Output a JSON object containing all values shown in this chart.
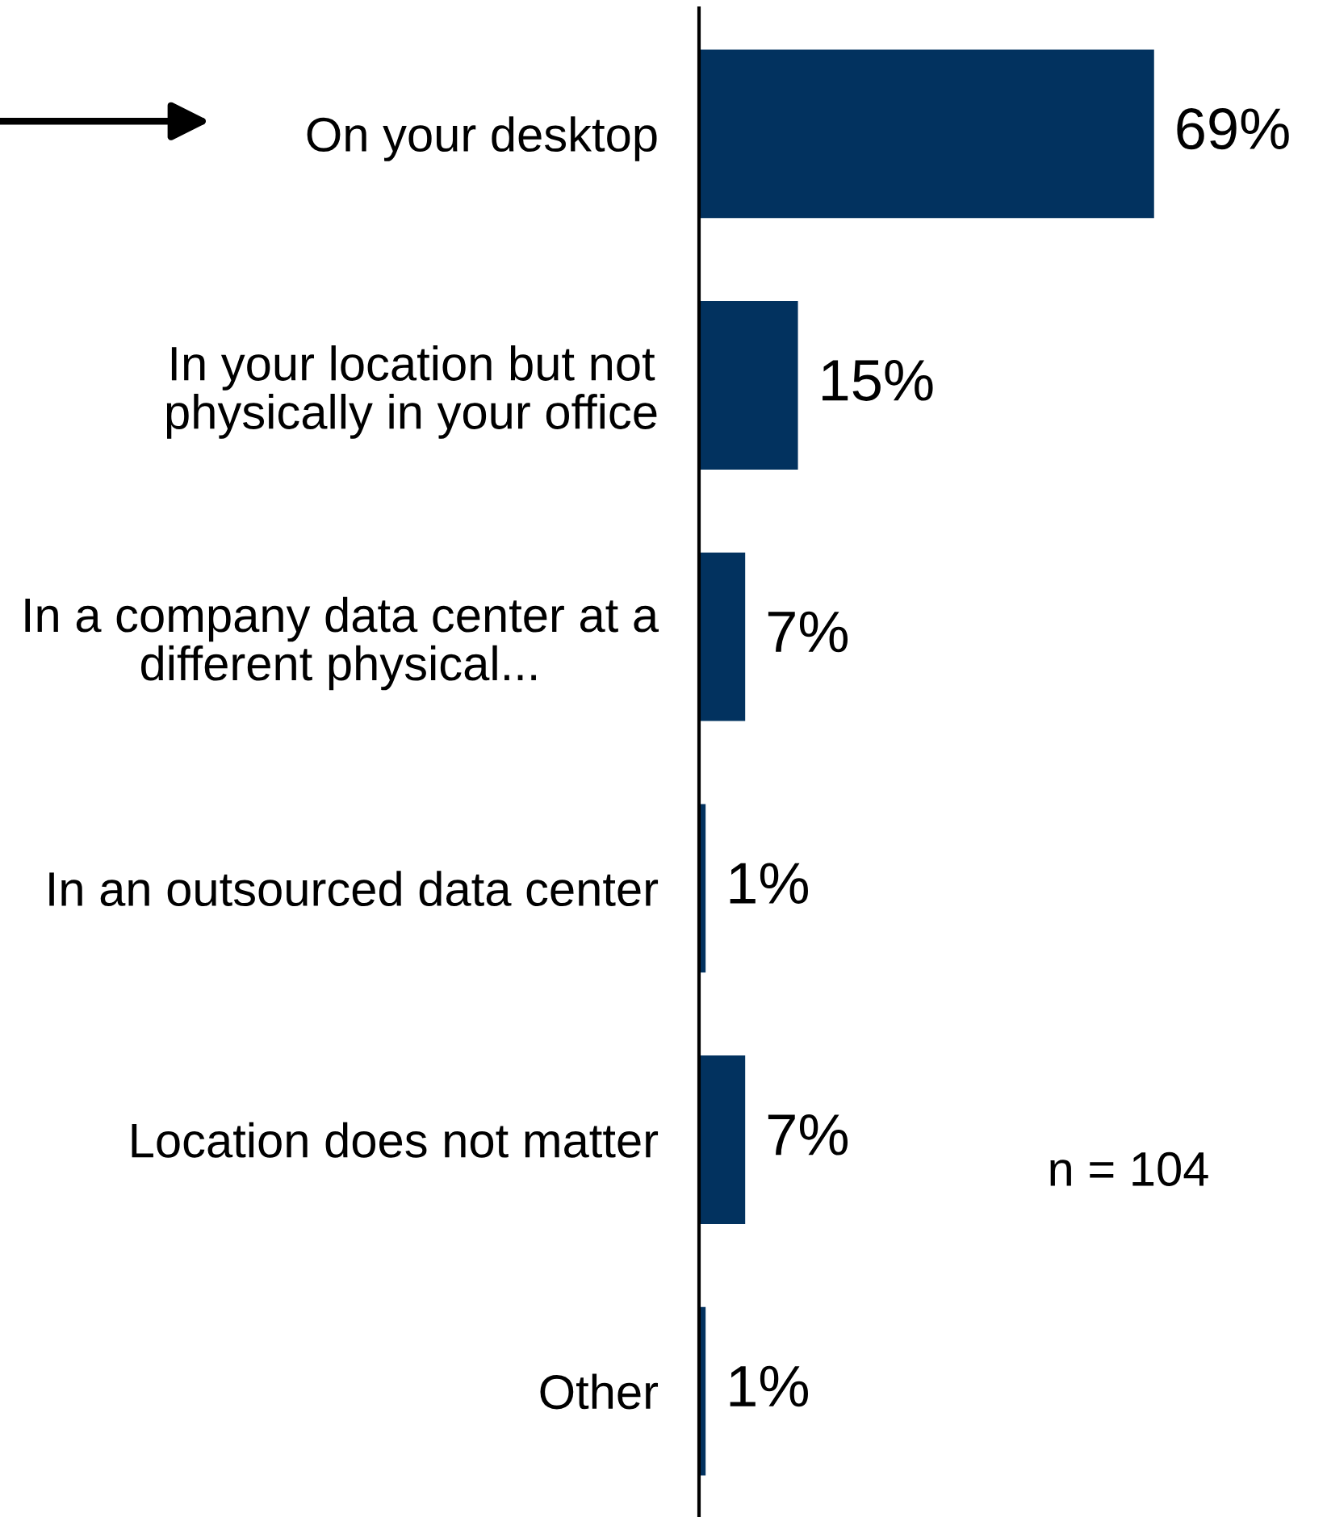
{
  "chart_data": {
    "type": "bar",
    "orientation": "horizontal",
    "categories": [
      "On your desktop",
      "In your location but not\nphysically in your office",
      "In a company data center at a\ndifferent physical...",
      "In an outsourced data center",
      "Location does not matter",
      "Other"
    ],
    "values": [
      69,
      15,
      7,
      1,
      7,
      1
    ],
    "color": "#02325f",
    "value_labels": [
      "69%",
      "15%",
      "7%",
      "1%",
      "7%",
      "1%"
    ],
    "annotations": [
      "n = 104"
    ],
    "tick_labels": "y"
  }
}
